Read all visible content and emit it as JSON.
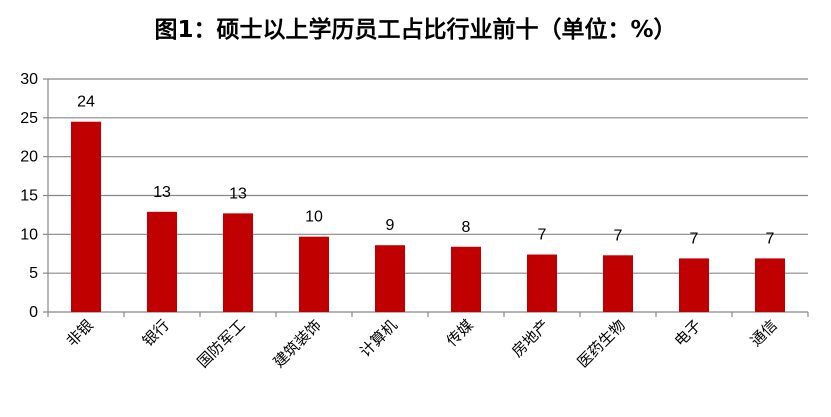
{
  "chart_data": {
    "type": "bar",
    "title": "图1：硕士以上学历员工占比行业前十（单位：%）",
    "categories": [
      "非银",
      "银行",
      "国防军工",
      "建筑装饰",
      "计算机",
      "传媒",
      "房地产",
      "医药生物",
      "电子",
      "通信"
    ],
    "values": [
      24.5,
      12.9,
      12.7,
      9.7,
      8.6,
      8.4,
      7.4,
      7.3,
      6.9,
      6.9
    ],
    "data_labels": [
      "24",
      "13",
      "13",
      "10",
      "9",
      "8",
      "7",
      "7",
      "7",
      "7"
    ],
    "xlabel": "",
    "ylabel": "",
    "ylim": [
      0,
      30
    ],
    "yticks": [
      0,
      5,
      10,
      15,
      20,
      25,
      30
    ],
    "grid": true,
    "bar_color": "#C00000",
    "grid_color": "#888888"
  }
}
